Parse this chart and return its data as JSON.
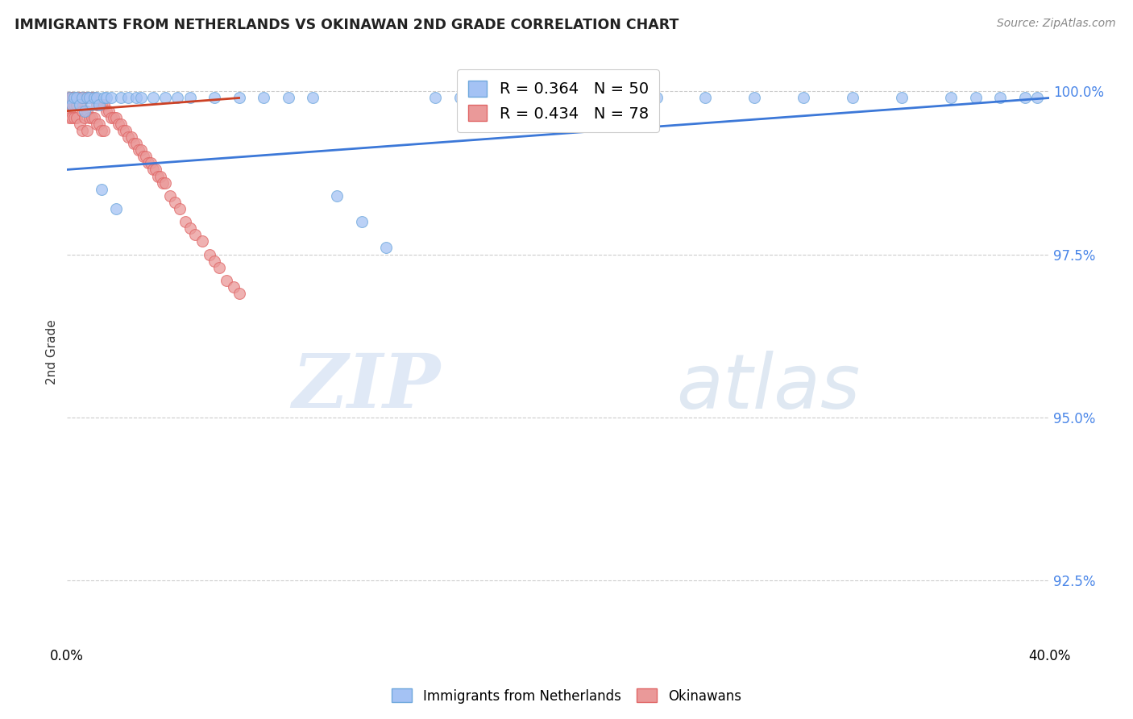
{
  "title": "IMMIGRANTS FROM NETHERLANDS VS OKINAWAN 2ND GRADE CORRELATION CHART",
  "source": "Source: ZipAtlas.com",
  "ylabel": "2nd Grade",
  "xlim": [
    0.0,
    0.4
  ],
  "ylim": [
    0.915,
    1.005
  ],
  "ytick_values": [
    0.925,
    0.95,
    0.975,
    1.0
  ],
  "ytick_labels": [
    "92.5%",
    "95.0%",
    "97.5%",
    "100.0%"
  ],
  "legend_label1": "Immigrants from Netherlands",
  "legend_label2": "Okinawans",
  "R_blue": 0.364,
  "N_blue": 50,
  "R_pink": 0.434,
  "N_pink": 78,
  "blue_color": "#a4c2f4",
  "pink_color": "#ea9999",
  "blue_edge_color": "#6fa8dc",
  "pink_edge_color": "#e06666",
  "blue_line_color": "#3c78d8",
  "pink_line_color": "#cc4125",
  "watermark_zip": "ZIP",
  "watermark_atlas": "atlas",
  "blue_x": [
    0.001,
    0.002,
    0.003,
    0.004,
    0.005,
    0.006,
    0.007,
    0.008,
    0.009,
    0.01,
    0.011,
    0.012,
    0.013,
    0.014,
    0.015,
    0.016,
    0.018,
    0.02,
    0.022,
    0.025,
    0.028,
    0.03,
    0.035,
    0.04,
    0.045,
    0.05,
    0.06,
    0.07,
    0.08,
    0.09,
    0.1,
    0.11,
    0.12,
    0.13,
    0.15,
    0.16,
    0.18,
    0.2,
    0.22,
    0.24,
    0.26,
    0.28,
    0.3,
    0.32,
    0.34,
    0.36,
    0.37,
    0.38,
    0.39,
    0.395
  ],
  "blue_y": [
    0.999,
    0.998,
    0.999,
    0.999,
    0.998,
    0.999,
    0.997,
    0.999,
    0.999,
    0.998,
    0.999,
    0.999,
    0.998,
    0.985,
    0.999,
    0.999,
    0.999,
    0.982,
    0.999,
    0.999,
    0.999,
    0.999,
    0.999,
    0.999,
    0.999,
    0.999,
    0.999,
    0.999,
    0.999,
    0.999,
    0.999,
    0.984,
    0.98,
    0.976,
    0.999,
    0.999,
    0.999,
    0.999,
    0.999,
    0.999,
    0.999,
    0.999,
    0.999,
    0.999,
    0.999,
    0.999,
    0.999,
    0.999,
    0.999,
    0.999
  ],
  "pink_x": [
    0.001,
    0.001,
    0.001,
    0.001,
    0.001,
    0.002,
    0.002,
    0.002,
    0.002,
    0.003,
    0.003,
    0.003,
    0.004,
    0.004,
    0.004,
    0.005,
    0.005,
    0.005,
    0.006,
    0.006,
    0.006,
    0.007,
    0.007,
    0.008,
    0.008,
    0.008,
    0.009,
    0.009,
    0.01,
    0.01,
    0.011,
    0.011,
    0.012,
    0.012,
    0.013,
    0.013,
    0.014,
    0.014,
    0.015,
    0.015,
    0.016,
    0.017,
    0.018,
    0.019,
    0.02,
    0.021,
    0.022,
    0.023,
    0.024,
    0.025,
    0.026,
    0.027,
    0.028,
    0.029,
    0.03,
    0.031,
    0.032,
    0.033,
    0.034,
    0.035,
    0.036,
    0.037,
    0.038,
    0.039,
    0.04,
    0.042,
    0.044,
    0.046,
    0.048,
    0.05,
    0.052,
    0.055,
    0.058,
    0.06,
    0.062,
    0.065,
    0.068,
    0.07
  ],
  "pink_y": [
    0.999,
    0.999,
    0.998,
    0.997,
    0.996,
    0.999,
    0.999,
    0.998,
    0.996,
    0.999,
    0.998,
    0.996,
    0.999,
    0.998,
    0.996,
    0.999,
    0.998,
    0.995,
    0.999,
    0.997,
    0.994,
    0.999,
    0.996,
    0.999,
    0.997,
    0.994,
    0.999,
    0.996,
    0.999,
    0.996,
    0.999,
    0.996,
    0.998,
    0.995,
    0.998,
    0.995,
    0.998,
    0.994,
    0.998,
    0.994,
    0.997,
    0.997,
    0.996,
    0.996,
    0.996,
    0.995,
    0.995,
    0.994,
    0.994,
    0.993,
    0.993,
    0.992,
    0.992,
    0.991,
    0.991,
    0.99,
    0.99,
    0.989,
    0.989,
    0.988,
    0.988,
    0.987,
    0.987,
    0.986,
    0.986,
    0.984,
    0.983,
    0.982,
    0.98,
    0.979,
    0.978,
    0.977,
    0.975,
    0.974,
    0.973,
    0.971,
    0.97,
    0.969
  ],
  "blue_line_x": [
    0.0,
    0.4
  ],
  "blue_line_y": [
    0.988,
    0.999
  ],
  "pink_line_x": [
    0.0,
    0.07
  ],
  "pink_line_y": [
    0.997,
    0.999
  ]
}
